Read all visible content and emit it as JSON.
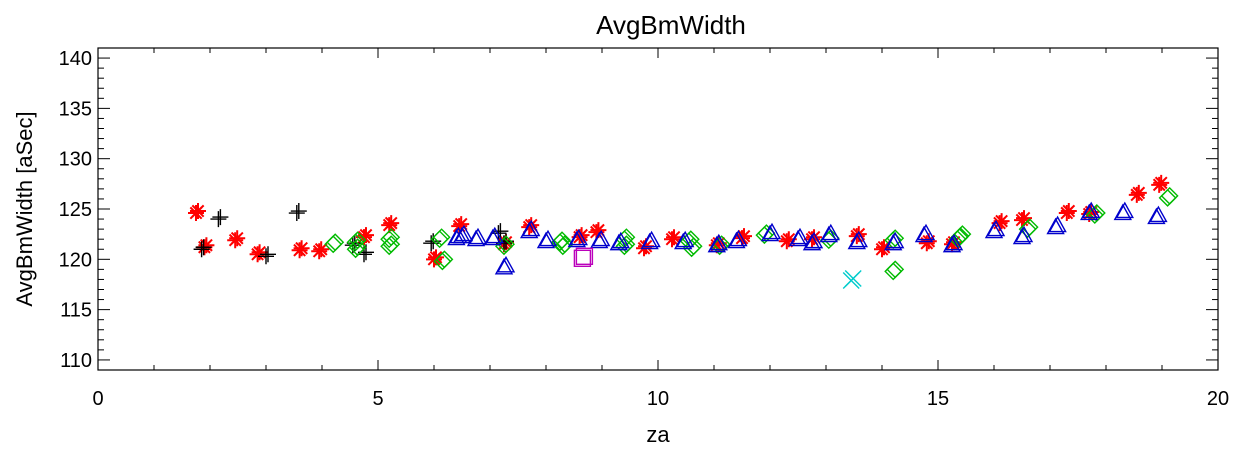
{
  "chart_data": {
    "type": "scatter",
    "title": "AvgBmWidth",
    "xlabel": "za",
    "ylabel": "AvgBmWidth [aSec]",
    "xlim": [
      0,
      20
    ],
    "ylim": [
      109,
      141
    ],
    "x_ticks": [
      "0",
      "5",
      "10",
      "15",
      "20"
    ],
    "y_ticks": [
      "110",
      "115",
      "120",
      "125",
      "130",
      "135",
      "140"
    ],
    "grid": false,
    "legend": "none",
    "series": [
      {
        "marker": "asterisk",
        "color": "#ff0000",
        "points": [
          [
            1.75,
            124.6
          ],
          [
            1.9,
            121.2
          ],
          [
            2.45,
            121.9
          ],
          [
            2.85,
            120.5
          ],
          [
            3.6,
            120.9
          ],
          [
            3.95,
            120.8
          ],
          [
            4.75,
            122.2
          ],
          [
            5.2,
            123.4
          ],
          [
            6.0,
            120.0
          ],
          [
            6.45,
            123.3
          ],
          [
            7.25,
            121.5
          ],
          [
            7.7,
            123.2
          ],
          [
            8.6,
            122.2
          ],
          [
            8.9,
            122.7
          ],
          [
            9.75,
            121.1
          ],
          [
            10.25,
            122.0
          ],
          [
            11.05,
            121.4
          ],
          [
            11.5,
            122.1
          ],
          [
            12.3,
            121.8
          ],
          [
            12.75,
            122.0
          ],
          [
            13.55,
            122.3
          ],
          [
            14.0,
            121.0
          ],
          [
            14.8,
            121.6
          ],
          [
            15.25,
            121.5
          ],
          [
            16.1,
            123.6
          ],
          [
            16.5,
            123.9
          ],
          [
            17.3,
            124.6
          ],
          [
            17.7,
            124.5
          ],
          [
            18.55,
            126.4
          ],
          [
            18.95,
            127.4
          ]
        ]
      },
      {
        "marker": "plus",
        "color": "#000000",
        "points": [
          [
            1.85,
            121.0
          ],
          [
            2.15,
            124.0
          ],
          [
            3.0,
            120.3
          ],
          [
            3.55,
            124.6
          ],
          [
            4.75,
            120.5
          ],
          [
            5.95,
            121.6
          ],
          [
            7.15,
            122.6
          ],
          [
            7.25,
            121.6
          ],
          [
            4.55,
            121.4
          ]
        ]
      },
      {
        "marker": "diamond",
        "color": "#00bb00",
        "points": [
          [
            4.2,
            121.5
          ],
          [
            4.6,
            121.7
          ],
          [
            4.6,
            121.0
          ],
          [
            5.2,
            122.0
          ],
          [
            5.2,
            121.3
          ],
          [
            6.1,
            122.0
          ],
          [
            6.15,
            119.8
          ],
          [
            7.25,
            121.3
          ],
          [
            8.25,
            121.7
          ],
          [
            8.3,
            121.3
          ],
          [
            9.4,
            122.0
          ],
          [
            9.4,
            121.3
          ],
          [
            10.55,
            121.8
          ],
          [
            10.6,
            121.1
          ],
          [
            11.1,
            121.3
          ],
          [
            11.9,
            122.4
          ],
          [
            13.05,
            121.9
          ],
          [
            14.2,
            121.9
          ],
          [
            14.2,
            118.8
          ],
          [
            15.35,
            122.0
          ],
          [
            15.4,
            122.3
          ],
          [
            16.6,
            123.0
          ],
          [
            17.8,
            124.4
          ],
          [
            19.1,
            126.1
          ]
        ]
      },
      {
        "marker": "triangle",
        "color": "#0000cc",
        "points": [
          [
            6.4,
            122.1
          ],
          [
            6.5,
            122.3
          ],
          [
            6.75,
            122.0
          ],
          [
            7.05,
            122.1
          ],
          [
            7.25,
            119.2
          ],
          [
            7.7,
            122.8
          ],
          [
            8.0,
            121.8
          ],
          [
            8.55,
            121.9
          ],
          [
            8.95,
            121.8
          ],
          [
            9.3,
            121.6
          ],
          [
            9.85,
            121.7
          ],
          [
            10.45,
            121.7
          ],
          [
            11.05,
            121.4
          ],
          [
            11.4,
            121.8
          ],
          [
            12.0,
            122.5
          ],
          [
            12.5,
            122.0
          ],
          [
            12.75,
            121.6
          ],
          [
            13.05,
            122.4
          ],
          [
            13.55,
            121.7
          ],
          [
            14.2,
            121.6
          ],
          [
            14.75,
            122.4
          ],
          [
            15.25,
            121.4
          ],
          [
            16.0,
            122.8
          ],
          [
            16.5,
            122.2
          ],
          [
            17.1,
            123.2
          ],
          [
            17.7,
            124.6
          ],
          [
            18.3,
            124.6
          ],
          [
            18.9,
            124.2
          ]
        ]
      },
      {
        "marker": "square",
        "color": "#bb00bb",
        "points": [
          [
            8.65,
            120.1
          ]
        ]
      },
      {
        "marker": "x",
        "color": "#00cccc",
        "points": [
          [
            13.45,
            117.9
          ]
        ]
      }
    ]
  }
}
